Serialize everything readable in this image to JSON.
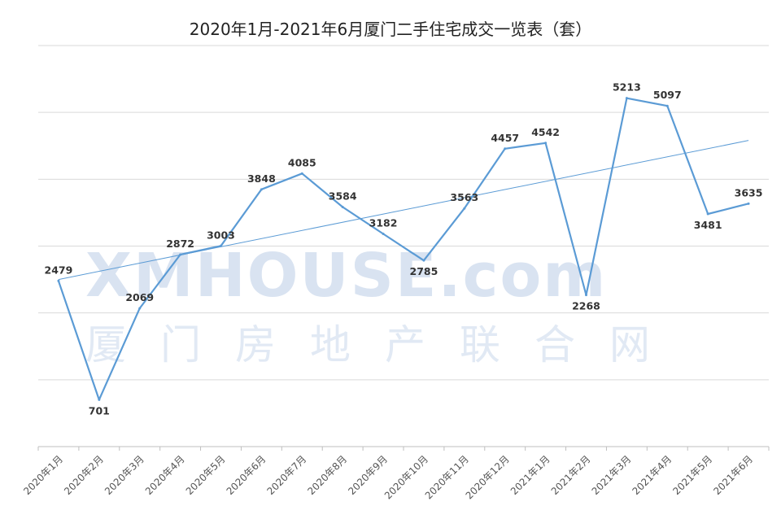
{
  "chart_data": {
    "type": "line",
    "title": "2020年1月-2021年6月厦门二手住宅成交一览表（套）",
    "categories": [
      "2020年1月",
      "2020年2月",
      "2020年3月",
      "2020年4月",
      "2020年5月",
      "2020年6月",
      "2020年7月",
      "2020年8月",
      "2020年9月",
      "2020年10月",
      "2020年11月",
      "2020年12月",
      "2021年1月",
      "2021年2月",
      "2021年3月",
      "2021年4月",
      "2021年5月",
      "2021年6月"
    ],
    "series": [
      {
        "values": [
          2479,
          701,
          2069,
          2872,
          3003,
          3848,
          4085,
          3584,
          3182,
          2785,
          3563,
          4457,
          4542,
          2268,
          5213,
          5097,
          3481,
          3635
        ]
      }
    ],
    "trendline": {
      "type": "linear",
      "start": 2500,
      "end": 4580
    },
    "ylim": [
      0,
      6000
    ],
    "grid": true,
    "colors": {
      "series": "#5b9bd5",
      "grid": "#d9d9d9"
    }
  },
  "watermark": {
    "main": "XMHOUSE.com",
    "sub": "厦门房地产联合网"
  }
}
